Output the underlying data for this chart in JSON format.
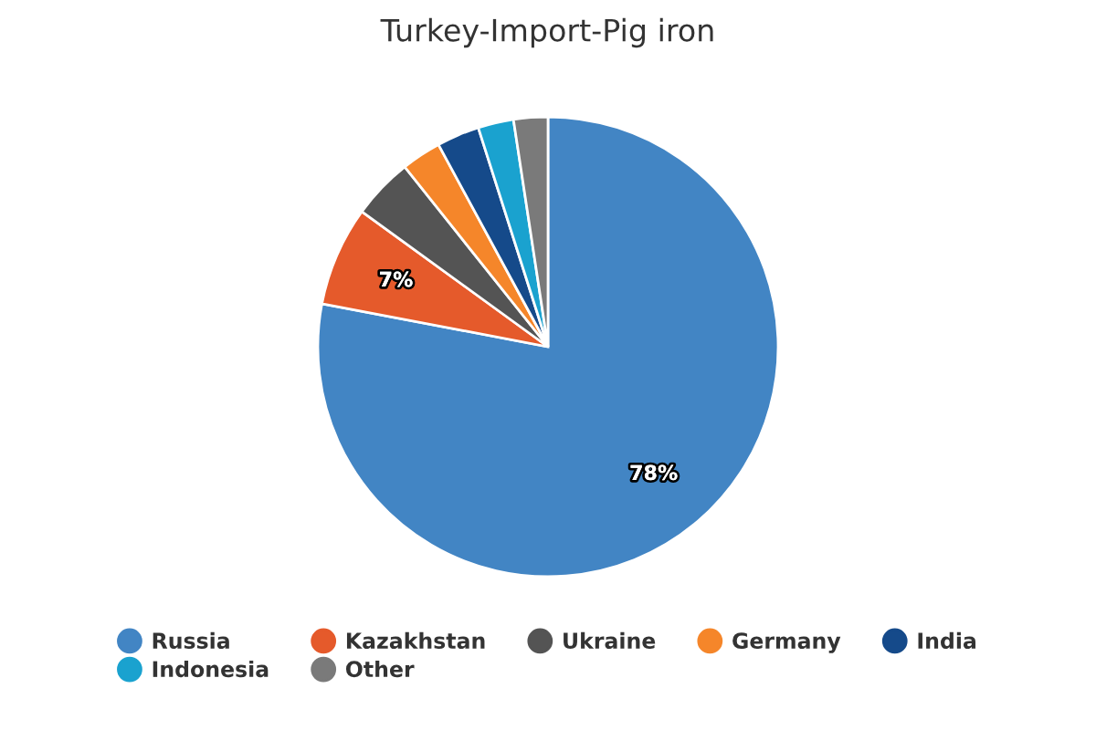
{
  "chart_data": {
    "type": "pie",
    "title": "Turkey-Import-Pig iron",
    "categories": [
      "Russia",
      "Kazakhstan",
      "Ukraine",
      "Germany",
      "India",
      "Indonesia",
      "Other"
    ],
    "values": [
      78,
      7,
      4.3,
      2.8,
      3.0,
      2.5,
      2.4
    ],
    "colors": [
      "#4285c4",
      "#e55a2b",
      "#545454",
      "#f5862a",
      "#154a8a",
      "#1aa2cf",
      "#7a7a7a"
    ],
    "value_labels": [
      "78%",
      "7%",
      null,
      null,
      null,
      null,
      null
    ],
    "legend": "bottom"
  }
}
